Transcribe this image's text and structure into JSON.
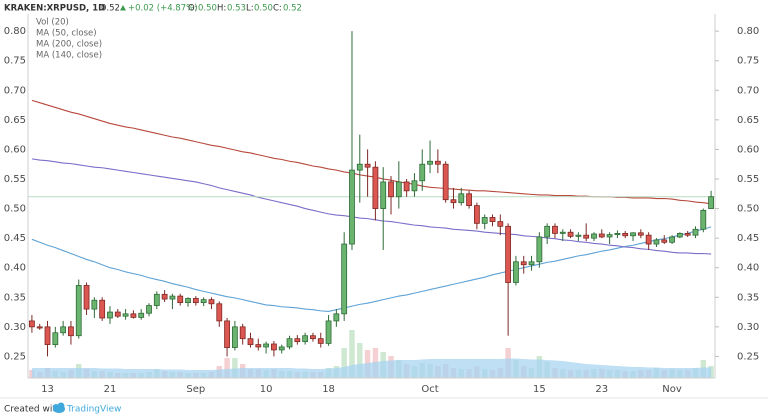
{
  "chart_data": {
    "type": "candlestick",
    "title": "KRAKEN:XRPUSD, 1D",
    "last_price": 0.52,
    "change": "+0.02 (+4.87%)",
    "ohlc_labels": [
      "O:",
      "H:",
      "L:",
      "C:"
    ],
    "ohlc_values": [
      "0.50",
      "0.53",
      "0.50",
      "0.52"
    ],
    "categories": [
      null,
      null,
      "13",
      null,
      null,
      null,
      null,
      null,
      null,
      null,
      "21",
      null,
      null,
      null,
      null,
      null,
      null,
      null,
      null,
      null,
      null,
      "Sep",
      null,
      null,
      null,
      null,
      null,
      null,
      null,
      null,
      "10",
      null,
      null,
      null,
      null,
      null,
      null,
      null,
      "18",
      null,
      null,
      null,
      null,
      null,
      null,
      null,
      null,
      null,
      null,
      null,
      null,
      "Oct",
      null,
      null,
      null,
      null,
      null,
      null,
      null,
      null,
      null,
      null,
      null,
      null,
      null,
      "15",
      null,
      null,
      null,
      null,
      null,
      null,
      null,
      "23",
      null,
      null,
      null,
      null,
      null,
      null,
      null,
      null,
      "Nov",
      null,
      null,
      null,
      null,
      null
    ],
    "open": [
      0.31,
      0.3,
      0.3,
      0.27,
      0.29,
      0.3,
      0.285,
      0.37,
      0.33,
      0.345,
      0.315,
      0.325,
      0.318,
      0.322,
      0.316,
      0.323,
      0.336,
      0.355,
      0.347,
      0.352,
      0.341,
      0.348,
      0.341,
      0.346,
      0.339,
      0.31,
      0.265,
      0.3,
      0.28,
      0.27,
      0.266,
      0.271,
      0.261,
      0.266,
      0.28,
      0.275,
      0.285,
      0.28,
      0.272,
      0.31,
      0.322,
      0.44,
      0.565,
      0.575,
      0.57,
      0.5,
      0.545,
      0.52,
      0.545,
      0.53,
      0.547,
      0.575,
      0.58,
      0.575,
      0.515,
      0.51,
      0.525,
      0.505,
      0.475,
      0.485,
      0.478,
      0.47,
      0.375,
      0.41,
      0.405,
      0.41,
      0.452,
      0.47,
      0.458,
      0.46,
      0.453,
      0.455,
      0.45,
      0.457,
      0.452,
      0.456,
      0.458,
      0.454,
      0.459,
      0.455,
      0.44,
      0.447,
      0.443,
      0.452,
      0.458,
      0.455,
      0.465,
      0.5
    ],
    "high": [
      0.32,
      0.305,
      0.31,
      0.3,
      0.31,
      0.31,
      0.38,
      0.375,
      0.35,
      0.35,
      0.335,
      0.33,
      0.33,
      0.328,
      0.33,
      0.34,
      0.36,
      0.362,
      0.356,
      0.356,
      0.35,
      0.352,
      0.35,
      0.35,
      0.343,
      0.315,
      0.31,
      0.305,
      0.29,
      0.28,
      0.275,
      0.276,
      0.27,
      0.285,
      0.286,
      0.29,
      0.29,
      0.29,
      0.32,
      0.33,
      0.46,
      0.8,
      0.625,
      0.6,
      0.58,
      0.57,
      0.555,
      0.58,
      0.55,
      0.56,
      0.6,
      0.615,
      0.6,
      0.58,
      0.535,
      0.535,
      0.53,
      0.51,
      0.49,
      0.49,
      0.49,
      0.475,
      0.42,
      0.42,
      0.42,
      0.46,
      0.475,
      0.475,
      0.465,
      0.465,
      0.46,
      0.475,
      0.46,
      0.465,
      0.46,
      0.463,
      0.462,
      0.46,
      0.465,
      0.46,
      0.45,
      0.455,
      0.455,
      0.46,
      0.462,
      0.47,
      0.5,
      0.53
    ],
    "low": [
      0.29,
      0.295,
      0.25,
      0.265,
      0.285,
      0.27,
      0.28,
      0.32,
      0.315,
      0.31,
      0.305,
      0.315,
      0.312,
      0.314,
      0.312,
      0.318,
      0.33,
      0.342,
      0.33,
      0.336,
      0.334,
      0.336,
      0.335,
      0.33,
      0.3,
      0.25,
      0.26,
      0.27,
      0.265,
      0.26,
      0.255,
      0.25,
      0.255,
      0.262,
      0.27,
      0.27,
      0.275,
      0.265,
      0.268,
      0.3,
      0.31,
      0.43,
      0.51,
      0.52,
      0.48,
      0.43,
      0.49,
      0.5,
      0.52,
      0.52,
      0.53,
      0.56,
      0.56,
      0.51,
      0.5,
      0.505,
      0.5,
      0.465,
      0.465,
      0.47,
      0.455,
      0.285,
      0.37,
      0.39,
      0.395,
      0.4,
      0.44,
      0.45,
      0.445,
      0.45,
      0.445,
      0.445,
      0.445,
      0.45,
      0.44,
      0.45,
      0.45,
      0.445,
      0.45,
      0.43,
      0.435,
      0.44,
      0.44,
      0.45,
      0.452,
      0.45,
      0.46,
      0.5
    ],
    "close": [
      0.3,
      0.298,
      0.27,
      0.29,
      0.3,
      0.285,
      0.37,
      0.33,
      0.345,
      0.315,
      0.325,
      0.318,
      0.322,
      0.316,
      0.323,
      0.336,
      0.355,
      0.347,
      0.352,
      0.341,
      0.348,
      0.341,
      0.346,
      0.339,
      0.31,
      0.265,
      0.3,
      0.28,
      0.27,
      0.266,
      0.271,
      0.261,
      0.266,
      0.28,
      0.275,
      0.285,
      0.28,
      0.272,
      0.31,
      0.322,
      0.44,
      0.565,
      0.575,
      0.57,
      0.5,
      0.545,
      0.52,
      0.545,
      0.53,
      0.547,
      0.575,
      0.58,
      0.575,
      0.515,
      0.51,
      0.525,
      0.505,
      0.475,
      0.485,
      0.478,
      0.47,
      0.375,
      0.41,
      0.405,
      0.41,
      0.452,
      0.47,
      0.458,
      0.46,
      0.453,
      0.455,
      0.45,
      0.457,
      0.452,
      0.456,
      0.458,
      0.454,
      0.459,
      0.455,
      0.44,
      0.447,
      0.443,
      0.452,
      0.458,
      0.455,
      0.465,
      0.497,
      0.52
    ],
    "up_color": "#6ab46f",
    "down_color": "#dc5752",
    "up_border": "#2f6b38",
    "down_border": "#7d2924",
    "last_price_color": "#b9d9c2",
    "volume": {
      "name": "Vol (20)",
      "up_color": "#cfe8d2",
      "down_color": "#f4d0d2",
      "ma_color": "#a8d4f0",
      "values": [
        8,
        6,
        10,
        7,
        6,
        8,
        14,
        9,
        7,
        7,
        6,
        5,
        5,
        5,
        5,
        6,
        9,
        7,
        6,
        6,
        5,
        5,
        5,
        6,
        12,
        20,
        20,
        14,
        9,
        9,
        8,
        9,
        7,
        7,
        6,
        6,
        6,
        6,
        10,
        12,
        30,
        48,
        35,
        28,
        30,
        26,
        22,
        18,
        14,
        12,
        15,
        14,
        12,
        14,
        10,
        9,
        9,
        12,
        9,
        8,
        10,
        30,
        18,
        12,
        10,
        22,
        16,
        10,
        9,
        8,
        8,
        8,
        9,
        9,
        8,
        8,
        7,
        7,
        8,
        8,
        10,
        8,
        9,
        8,
        8,
        10,
        18,
        12
      ],
      "ma_values": [
        10,
        10,
        10,
        10,
        10,
        10,
        10,
        10,
        10,
        9.5,
        9.5,
        9.5,
        9,
        9,
        9,
        9,
        9,
        8.5,
        8.5,
        8.5,
        8,
        8,
        8,
        8,
        8.5,
        9,
        9.5,
        10,
        10,
        10,
        10,
        10,
        10,
        10,
        9.5,
        9.5,
        9,
        9,
        9.5,
        10,
        11,
        13,
        14,
        15,
        16,
        17,
        17.5,
        18,
        18,
        18,
        18.5,
        19,
        19,
        19,
        19,
        19,
        19,
        19,
        19,
        19,
        19,
        19.5,
        19.5,
        19,
        18.5,
        18.5,
        18,
        17.5,
        17,
        16,
        15,
        14,
        13.5,
        13,
        12.5,
        12,
        11.5,
        11,
        11,
        10.5,
        10.5,
        10,
        10,
        10,
        10,
        10,
        10.5,
        10.5
      ]
    },
    "series": [
      {
        "name": "MA (50, close)",
        "color": "#5fa3d6",
        "values": [
          0.448,
          0.443,
          0.438,
          0.434,
          0.429,
          0.424,
          0.419,
          0.414,
          0.41,
          0.405,
          0.4,
          0.397,
          0.393,
          0.39,
          0.387,
          0.383,
          0.38,
          0.377,
          0.373,
          0.37,
          0.367,
          0.363,
          0.36,
          0.357,
          0.354,
          0.351,
          0.349,
          0.346,
          0.343,
          0.34,
          0.337,
          0.336,
          0.334,
          0.333,
          0.332,
          0.33,
          0.329,
          0.327,
          0.326,
          0.329,
          0.332,
          0.335,
          0.338,
          0.34,
          0.343,
          0.346,
          0.349,
          0.352,
          0.354,
          0.357,
          0.36,
          0.363,
          0.366,
          0.369,
          0.372,
          0.375,
          0.378,
          0.381,
          0.384,
          0.388,
          0.391,
          0.394,
          0.397,
          0.4,
          0.403,
          0.406,
          0.409,
          0.411,
          0.414,
          0.417,
          0.42,
          0.422,
          0.425,
          0.428,
          0.43,
          0.433,
          0.436,
          0.438,
          0.441,
          0.444,
          0.447,
          0.449,
          0.452,
          0.455,
          0.458,
          0.462,
          0.465,
          0.469
        ]
      },
      {
        "name": "MA (200, close)",
        "color": "#b8493c",
        "values": [
          0.683,
          0.679,
          0.675,
          0.671,
          0.667,
          0.663,
          0.66,
          0.656,
          0.652,
          0.648,
          0.644,
          0.641,
          0.638,
          0.636,
          0.633,
          0.63,
          0.627,
          0.624,
          0.621,
          0.619,
          0.616,
          0.613,
          0.61,
          0.607,
          0.605,
          0.602,
          0.599,
          0.596,
          0.594,
          0.591,
          0.588,
          0.585,
          0.583,
          0.58,
          0.578,
          0.575,
          0.572,
          0.57,
          0.567,
          0.565,
          0.562,
          0.56,
          0.557,
          0.555,
          0.553,
          0.55,
          0.548,
          0.545,
          0.543,
          0.541,
          0.538,
          0.536,
          0.535,
          0.534,
          0.533,
          0.532,
          0.531,
          0.53,
          0.53,
          0.529,
          0.528,
          0.527,
          0.526,
          0.525,
          0.524,
          0.523,
          0.523,
          0.522,
          0.522,
          0.522,
          0.521,
          0.521,
          0.52,
          0.52,
          0.52,
          0.519,
          0.519,
          0.518,
          0.518,
          0.518,
          0.517,
          0.517,
          0.516,
          0.514,
          0.513,
          0.511,
          0.51,
          0.508
        ]
      },
      {
        "name": "MA (140, close)",
        "color": "#7a6ec9",
        "values": [
          0.584,
          0.582,
          0.581,
          0.579,
          0.577,
          0.576,
          0.574,
          0.572,
          0.57,
          0.569,
          0.567,
          0.565,
          0.563,
          0.561,
          0.559,
          0.557,
          0.555,
          0.553,
          0.551,
          0.549,
          0.547,
          0.545,
          0.542,
          0.539,
          0.535,
          0.532,
          0.529,
          0.526,
          0.523,
          0.519,
          0.516,
          0.513,
          0.51,
          0.507,
          0.504,
          0.5,
          0.497,
          0.494,
          0.491,
          0.489,
          0.488,
          0.486,
          0.484,
          0.483,
          0.481,
          0.479,
          0.478,
          0.476,
          0.474,
          0.472,
          0.471,
          0.469,
          0.468,
          0.467,
          0.465,
          0.464,
          0.463,
          0.462,
          0.46,
          0.459,
          0.458,
          0.457,
          0.456,
          0.454,
          0.453,
          0.452,
          0.45,
          0.449,
          0.447,
          0.446,
          0.444,
          0.443,
          0.441,
          0.44,
          0.438,
          0.437,
          0.435,
          0.434,
          0.432,
          0.431,
          0.429,
          0.428,
          0.426,
          0.425,
          0.425,
          0.424,
          0.424,
          0.423
        ]
      }
    ],
    "ylim": [
      0.2135,
      0.829
    ],
    "yticks": [
      {
        "value": 0.25,
        "label": "0.25"
      },
      {
        "value": 0.3,
        "label": "0.30"
      },
      {
        "value": 0.35,
        "label": "0.35"
      },
      {
        "value": 0.4,
        "label": "0.40"
      },
      {
        "value": 0.45,
        "label": "0.45"
      },
      {
        "value": 0.5,
        "label": "0.50"
      },
      {
        "value": 0.55,
        "label": "0.55"
      },
      {
        "value": 0.6,
        "label": "0.60"
      },
      {
        "value": 0.65,
        "label": "0.65"
      },
      {
        "value": 0.7,
        "label": "0.70"
      },
      {
        "value": 0.75,
        "label": "0.75"
      },
      {
        "value": 0.8,
        "label": "0.80"
      }
    ]
  },
  "footer": {
    "text": "Created with",
    "brand": "TradingView"
  }
}
